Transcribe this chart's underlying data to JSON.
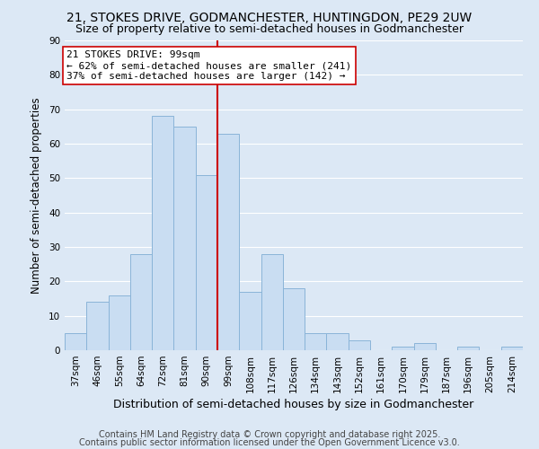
{
  "title": "21, STOKES DRIVE, GODMANCHESTER, HUNTINGDON, PE29 2UW",
  "subtitle": "Size of property relative to semi-detached houses in Godmanchester",
  "xlabel": "Distribution of semi-detached houses by size in Godmanchester",
  "ylabel": "Number of semi-detached properties",
  "bar_labels": [
    "37sqm",
    "46sqm",
    "55sqm",
    "64sqm",
    "72sqm",
    "81sqm",
    "90sqm",
    "99sqm",
    "108sqm",
    "117sqm",
    "126sqm",
    "134sqm",
    "143sqm",
    "152sqm",
    "161sqm",
    "170sqm",
    "179sqm",
    "187sqm",
    "196sqm",
    "205sqm",
    "214sqm"
  ],
  "bar_values": [
    5,
    14,
    16,
    28,
    68,
    65,
    51,
    63,
    17,
    28,
    18,
    5,
    5,
    3,
    0,
    1,
    2,
    0,
    1,
    0,
    1
  ],
  "bar_color": "#c9ddf2",
  "bar_edge_color": "#8ab4d8",
  "vline_color": "#cc0000",
  "annotation_title": "21 STOKES DRIVE: 99sqm",
  "annotation_line1": "← 62% of semi-detached houses are smaller (241)",
  "annotation_line2": "37% of semi-detached houses are larger (142) →",
  "annotation_box_facecolor": "#ffffff",
  "annotation_box_edgecolor": "#cc0000",
  "ylim": [
    0,
    90
  ],
  "yticks": [
    0,
    10,
    20,
    30,
    40,
    50,
    60,
    70,
    80,
    90
  ],
  "footer1": "Contains HM Land Registry data © Crown copyright and database right 2025.",
  "footer2": "Contains public sector information licensed under the Open Government Licence v3.0.",
  "bg_color": "#dce8f5",
  "plot_bg_color": "#dce8f5",
  "grid_color": "#ffffff",
  "title_fontsize": 10,
  "subtitle_fontsize": 9,
  "xlabel_fontsize": 9,
  "ylabel_fontsize": 8.5,
  "tick_fontsize": 7.5,
  "annotation_fontsize": 8,
  "footer_fontsize": 7
}
